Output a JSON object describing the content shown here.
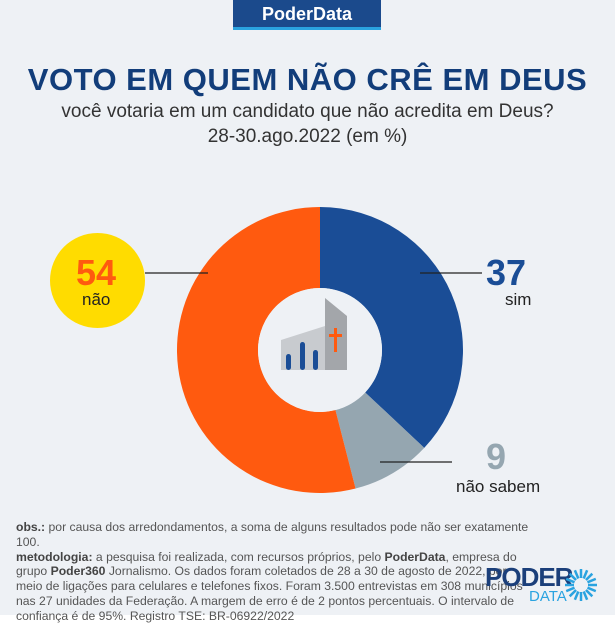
{
  "brand": "PoderData",
  "chart_data": {
    "type": "pie",
    "title": "VOTO EM QUEM NÃO CRÊ EM DEUS",
    "subtitle": "você votaria em um candidato que não acredita em Deus?",
    "date": "28-30.ago.2022 (em %)",
    "categories": [
      "sim",
      "não sabem",
      "não"
    ],
    "values": [
      37,
      9,
      54
    ],
    "colors": [
      "#1a4d96",
      "#95a6b0",
      "#ff5a0f"
    ],
    "donut": true
  },
  "notes": {
    "obs_label": "obs.:",
    "obs": " por causa dos arredondamentos, a soma de alguns resultados pode não ser exatamente 100.",
    "met_label": "metodologia:",
    "met1": " a pesquisa foi realizada, com recursos próprios, pelo ",
    "poderdata": "PoderData",
    "met2": ", empresa do grupo ",
    "poder360": "Poder360",
    "met3": " Jornalismo. Os dados foram coletados de 28 a 30 de agosto de 2022, por meio de ligações para celulares e telefones fixos. Foram 3.500 entrevistas em 308 municípios nas 27 unidades da Federação. A margem de erro é de 2 pontos percentuais. O intervalo de confiança é de 95%. Registro TSE: BR-06922/2022"
  },
  "logo": {
    "top": "PODER",
    "bottom": "DATA"
  }
}
